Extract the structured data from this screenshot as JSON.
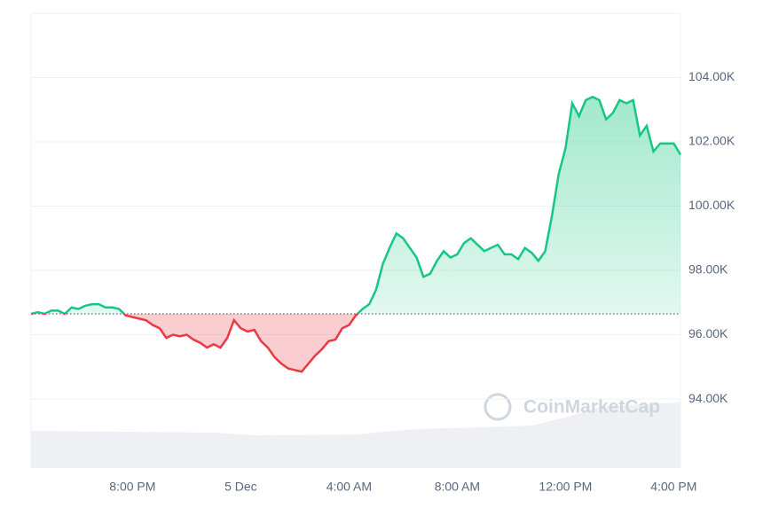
{
  "chart_data": {
    "type": "line",
    "watermark": "CoinMarketCap",
    "categories": [
      null,
      null,
      null,
      null,
      null,
      null,
      null,
      null,
      null,
      null,
      null,
      null,
      null,
      null,
      null,
      "8:00 PM",
      null,
      null,
      null,
      null,
      null,
      null,
      null,
      null,
      null,
      null,
      null,
      null,
      null,
      null,
      null,
      "5 Dec",
      null,
      null,
      null,
      null,
      null,
      null,
      null,
      null,
      null,
      null,
      null,
      null,
      null,
      null,
      null,
      "4:00 AM",
      null,
      null,
      null,
      null,
      null,
      null,
      null,
      null,
      null,
      null,
      null,
      null,
      null,
      null,
      null,
      "8:00 AM",
      null,
      null,
      null,
      null,
      null,
      null,
      null,
      null,
      null,
      null,
      null,
      null,
      null,
      null,
      null,
      "12:00 PM",
      null,
      null,
      null,
      null,
      null,
      null,
      null,
      null,
      null,
      null,
      null,
      null,
      null,
      null,
      null,
      "4:00 PM",
      null
    ],
    "values": [
      96.65,
      96.7,
      96.65,
      96.75,
      96.75,
      96.65,
      96.85,
      96.8,
      96.9,
      96.95,
      96.95,
      96.85,
      96.85,
      96.8,
      96.6,
      96.55,
      96.5,
      96.45,
      96.3,
      96.2,
      95.9,
      96.0,
      95.95,
      96.0,
      95.85,
      95.75,
      95.6,
      95.7,
      95.6,
      95.9,
      96.45,
      96.2,
      96.1,
      96.15,
      95.8,
      95.6,
      95.3,
      95.1,
      94.95,
      94.9,
      94.85,
      95.1,
      95.35,
      95.55,
      95.8,
      95.85,
      96.2,
      96.3,
      96.6,
      96.8,
      96.95,
      97.4,
      98.2,
      98.7,
      99.15,
      99.0,
      98.7,
      98.4,
      97.8,
      97.9,
      98.3,
      98.6,
      98.4,
      98.5,
      98.85,
      99.0,
      98.8,
      98.6,
      98.7,
      98.8,
      98.5,
      98.5,
      98.35,
      98.7,
      98.55,
      98.3,
      98.6,
      99.7,
      101.0,
      101.8,
      103.2,
      102.8,
      103.3,
      103.4,
      103.3,
      102.7,
      102.9,
      103.3,
      103.2,
      103.3,
      102.2,
      102.5,
      101.7,
      101.95,
      101.95,
      101.95,
      101.6
    ],
    "up_color": "#16c784",
    "down_color": "#ea3943",
    "ylim": [
      91.85,
      106
    ],
    "yticks": [
      {
        "value": 94,
        "label": "94.00K"
      },
      {
        "value": 96,
        "label": "96.00K"
      },
      {
        "value": 98,
        "label": "98.00K"
      },
      {
        "value": 100,
        "label": "100.00K"
      },
      {
        "value": 102,
        "label": "102.00K"
      },
      {
        "value": 104,
        "label": "104.00K"
      }
    ],
    "grid": true
  }
}
